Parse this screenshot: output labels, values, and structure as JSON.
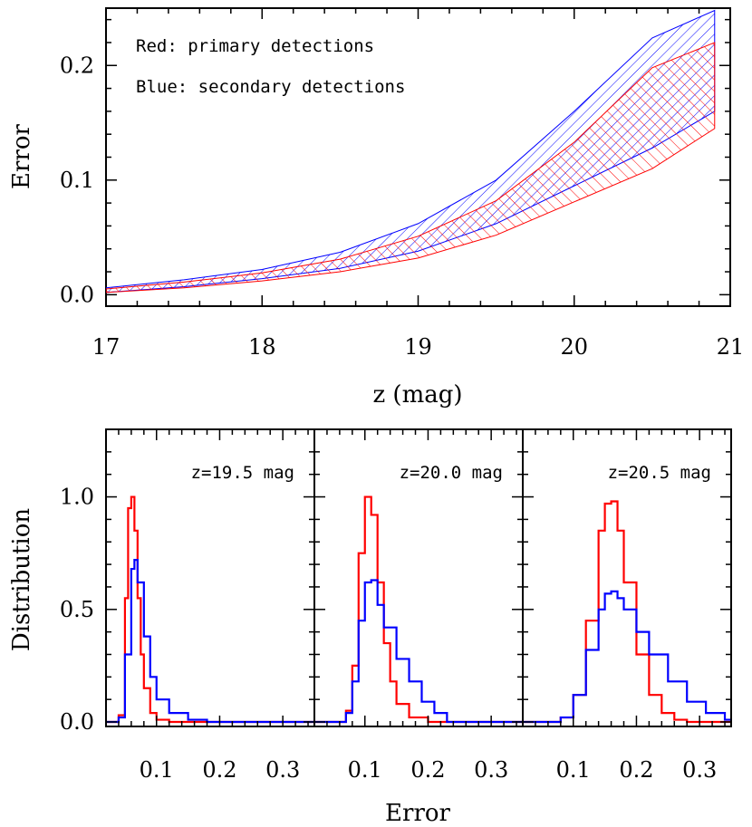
{
  "chart_data": [
    {
      "type": "area",
      "xlabel": "z (mag)",
      "ylabel": "Error",
      "xlim": [
        17,
        21
      ],
      "ylim": [
        -0.01,
        0.25
      ],
      "xticks": [
        17,
        18,
        19,
        20,
        21
      ],
      "xtick_labels": [
        "17",
        "18",
        "19",
        "20",
        "21"
      ],
      "yticks": [
        0.0,
        0.1,
        0.2
      ],
      "ytick_labels": [
        "0.0",
        "0.1",
        "0.2"
      ],
      "annotations": [
        "Red: primary detections",
        "Blue: secondary detections"
      ],
      "series": [
        {
          "color": "#0000ff",
          "x": [
            17.0,
            17.5,
            18.0,
            18.5,
            19.0,
            19.5,
            20.0,
            20.5,
            20.9
          ],
          "upper": [
            0.006,
            0.013,
            0.022,
            0.037,
            0.062,
            0.1,
            0.16,
            0.224,
            0.248
          ],
          "lower": [
            0.002,
            0.007,
            0.014,
            0.023,
            0.038,
            0.062,
            0.095,
            0.128,
            0.16
          ]
        },
        {
          "color": "#ff0000",
          "x": [
            17.0,
            17.5,
            18.0,
            18.5,
            19.0,
            19.5,
            20.0,
            20.5,
            20.9
          ],
          "upper": [
            0.005,
            0.011,
            0.019,
            0.031,
            0.051,
            0.082,
            0.133,
            0.198,
            0.22
          ],
          "lower": [
            0.002,
            0.006,
            0.012,
            0.02,
            0.032,
            0.052,
            0.081,
            0.11,
            0.145
          ]
        }
      ]
    },
    {
      "type": "line",
      "title": "z=19.5 mag",
      "xlabel": "Error",
      "ylabel": "Distribution",
      "xlim": [
        0.02,
        0.35
      ],
      "ylim": [
        -0.02,
        1.3
      ],
      "xticks": [
        0.1,
        0.2,
        0.3
      ],
      "xtick_labels": [
        "0.1",
        "0.2",
        "0.3"
      ],
      "yticks": [
        0.0,
        0.5,
        1.0
      ],
      "ytick_labels": [
        "0.0",
        "0.5",
        "1.0"
      ],
      "series": [
        {
          "color": "#ff0000",
          "x": [
            0.02,
            0.03,
            0.04,
            0.05,
            0.055,
            0.06,
            0.065,
            0.07,
            0.075,
            0.08,
            0.09,
            0.1,
            0.12,
            0.35
          ],
          "y": [
            0.0,
            0.0,
            0.03,
            0.55,
            0.95,
            1.0,
            0.85,
            0.55,
            0.3,
            0.15,
            0.04,
            0.01,
            0.0,
            0.0
          ]
        },
        {
          "color": "#0000ff",
          "x": [
            0.02,
            0.03,
            0.04,
            0.05,
            0.06,
            0.065,
            0.07,
            0.08,
            0.09,
            0.1,
            0.12,
            0.15,
            0.18,
            0.35
          ],
          "y": [
            0.0,
            0.0,
            0.02,
            0.3,
            0.68,
            0.72,
            0.62,
            0.38,
            0.2,
            0.1,
            0.04,
            0.01,
            0.0,
            0.0
          ]
        }
      ]
    },
    {
      "type": "line",
      "title": "z=20.0 mag",
      "xlabel": "Error",
      "ylabel": "Distribution",
      "xlim": [
        0.02,
        0.35
      ],
      "ylim": [
        -0.02,
        1.3
      ],
      "xticks": [
        0.1,
        0.2,
        0.3
      ],
      "xtick_labels": [
        "0.1",
        "0.2",
        "0.3"
      ],
      "yticks": [
        0.0,
        0.5,
        1.0
      ],
      "ytick_labels": [
        "0.0",
        "0.5",
        "1.0"
      ],
      "series": [
        {
          "color": "#ff0000",
          "x": [
            0.02,
            0.05,
            0.07,
            0.08,
            0.09,
            0.1,
            0.11,
            0.12,
            0.13,
            0.14,
            0.15,
            0.17,
            0.2,
            0.35
          ],
          "y": [
            0.0,
            0.0,
            0.05,
            0.25,
            0.75,
            1.0,
            0.92,
            0.62,
            0.35,
            0.18,
            0.08,
            0.02,
            0.0,
            0.0
          ]
        },
        {
          "color": "#0000ff",
          "x": [
            0.02,
            0.05,
            0.07,
            0.08,
            0.09,
            0.1,
            0.11,
            0.12,
            0.13,
            0.15,
            0.17,
            0.19,
            0.21,
            0.23,
            0.35
          ],
          "y": [
            0.0,
            0.0,
            0.04,
            0.18,
            0.45,
            0.62,
            0.63,
            0.52,
            0.42,
            0.28,
            0.18,
            0.09,
            0.04,
            0.0,
            0.0
          ]
        }
      ]
    },
    {
      "type": "line",
      "title": "z=20.5 mag",
      "xlabel": "Error",
      "ylabel": "Distribution",
      "xlim": [
        0.02,
        0.35
      ],
      "ylim": [
        -0.02,
        1.3
      ],
      "xticks": [
        0.1,
        0.2,
        0.3
      ],
      "xtick_labels": [
        "0.1",
        "0.2",
        "0.3"
      ],
      "yticks": [
        0.0,
        0.5,
        1.0
      ],
      "ytick_labels": [
        "0.0",
        "0.5",
        "1.0"
      ],
      "series": [
        {
          "color": "#ff0000",
          "x": [
            0.02,
            0.06,
            0.08,
            0.1,
            0.12,
            0.14,
            0.15,
            0.16,
            0.17,
            0.18,
            0.2,
            0.22,
            0.24,
            0.26,
            0.28,
            0.35
          ],
          "y": [
            0.0,
            0.0,
            0.02,
            0.12,
            0.45,
            0.85,
            0.97,
            0.98,
            0.85,
            0.62,
            0.3,
            0.12,
            0.04,
            0.01,
            0.0,
            0.0
          ]
        },
        {
          "color": "#0000ff",
          "x": [
            0.02,
            0.06,
            0.08,
            0.1,
            0.12,
            0.14,
            0.15,
            0.16,
            0.17,
            0.18,
            0.2,
            0.22,
            0.25,
            0.28,
            0.31,
            0.34,
            0.35
          ],
          "y": [
            0.0,
            0.0,
            0.02,
            0.12,
            0.32,
            0.5,
            0.57,
            0.58,
            0.55,
            0.5,
            0.4,
            0.3,
            0.18,
            0.09,
            0.04,
            0.01,
            0.0
          ]
        }
      ]
    }
  ]
}
